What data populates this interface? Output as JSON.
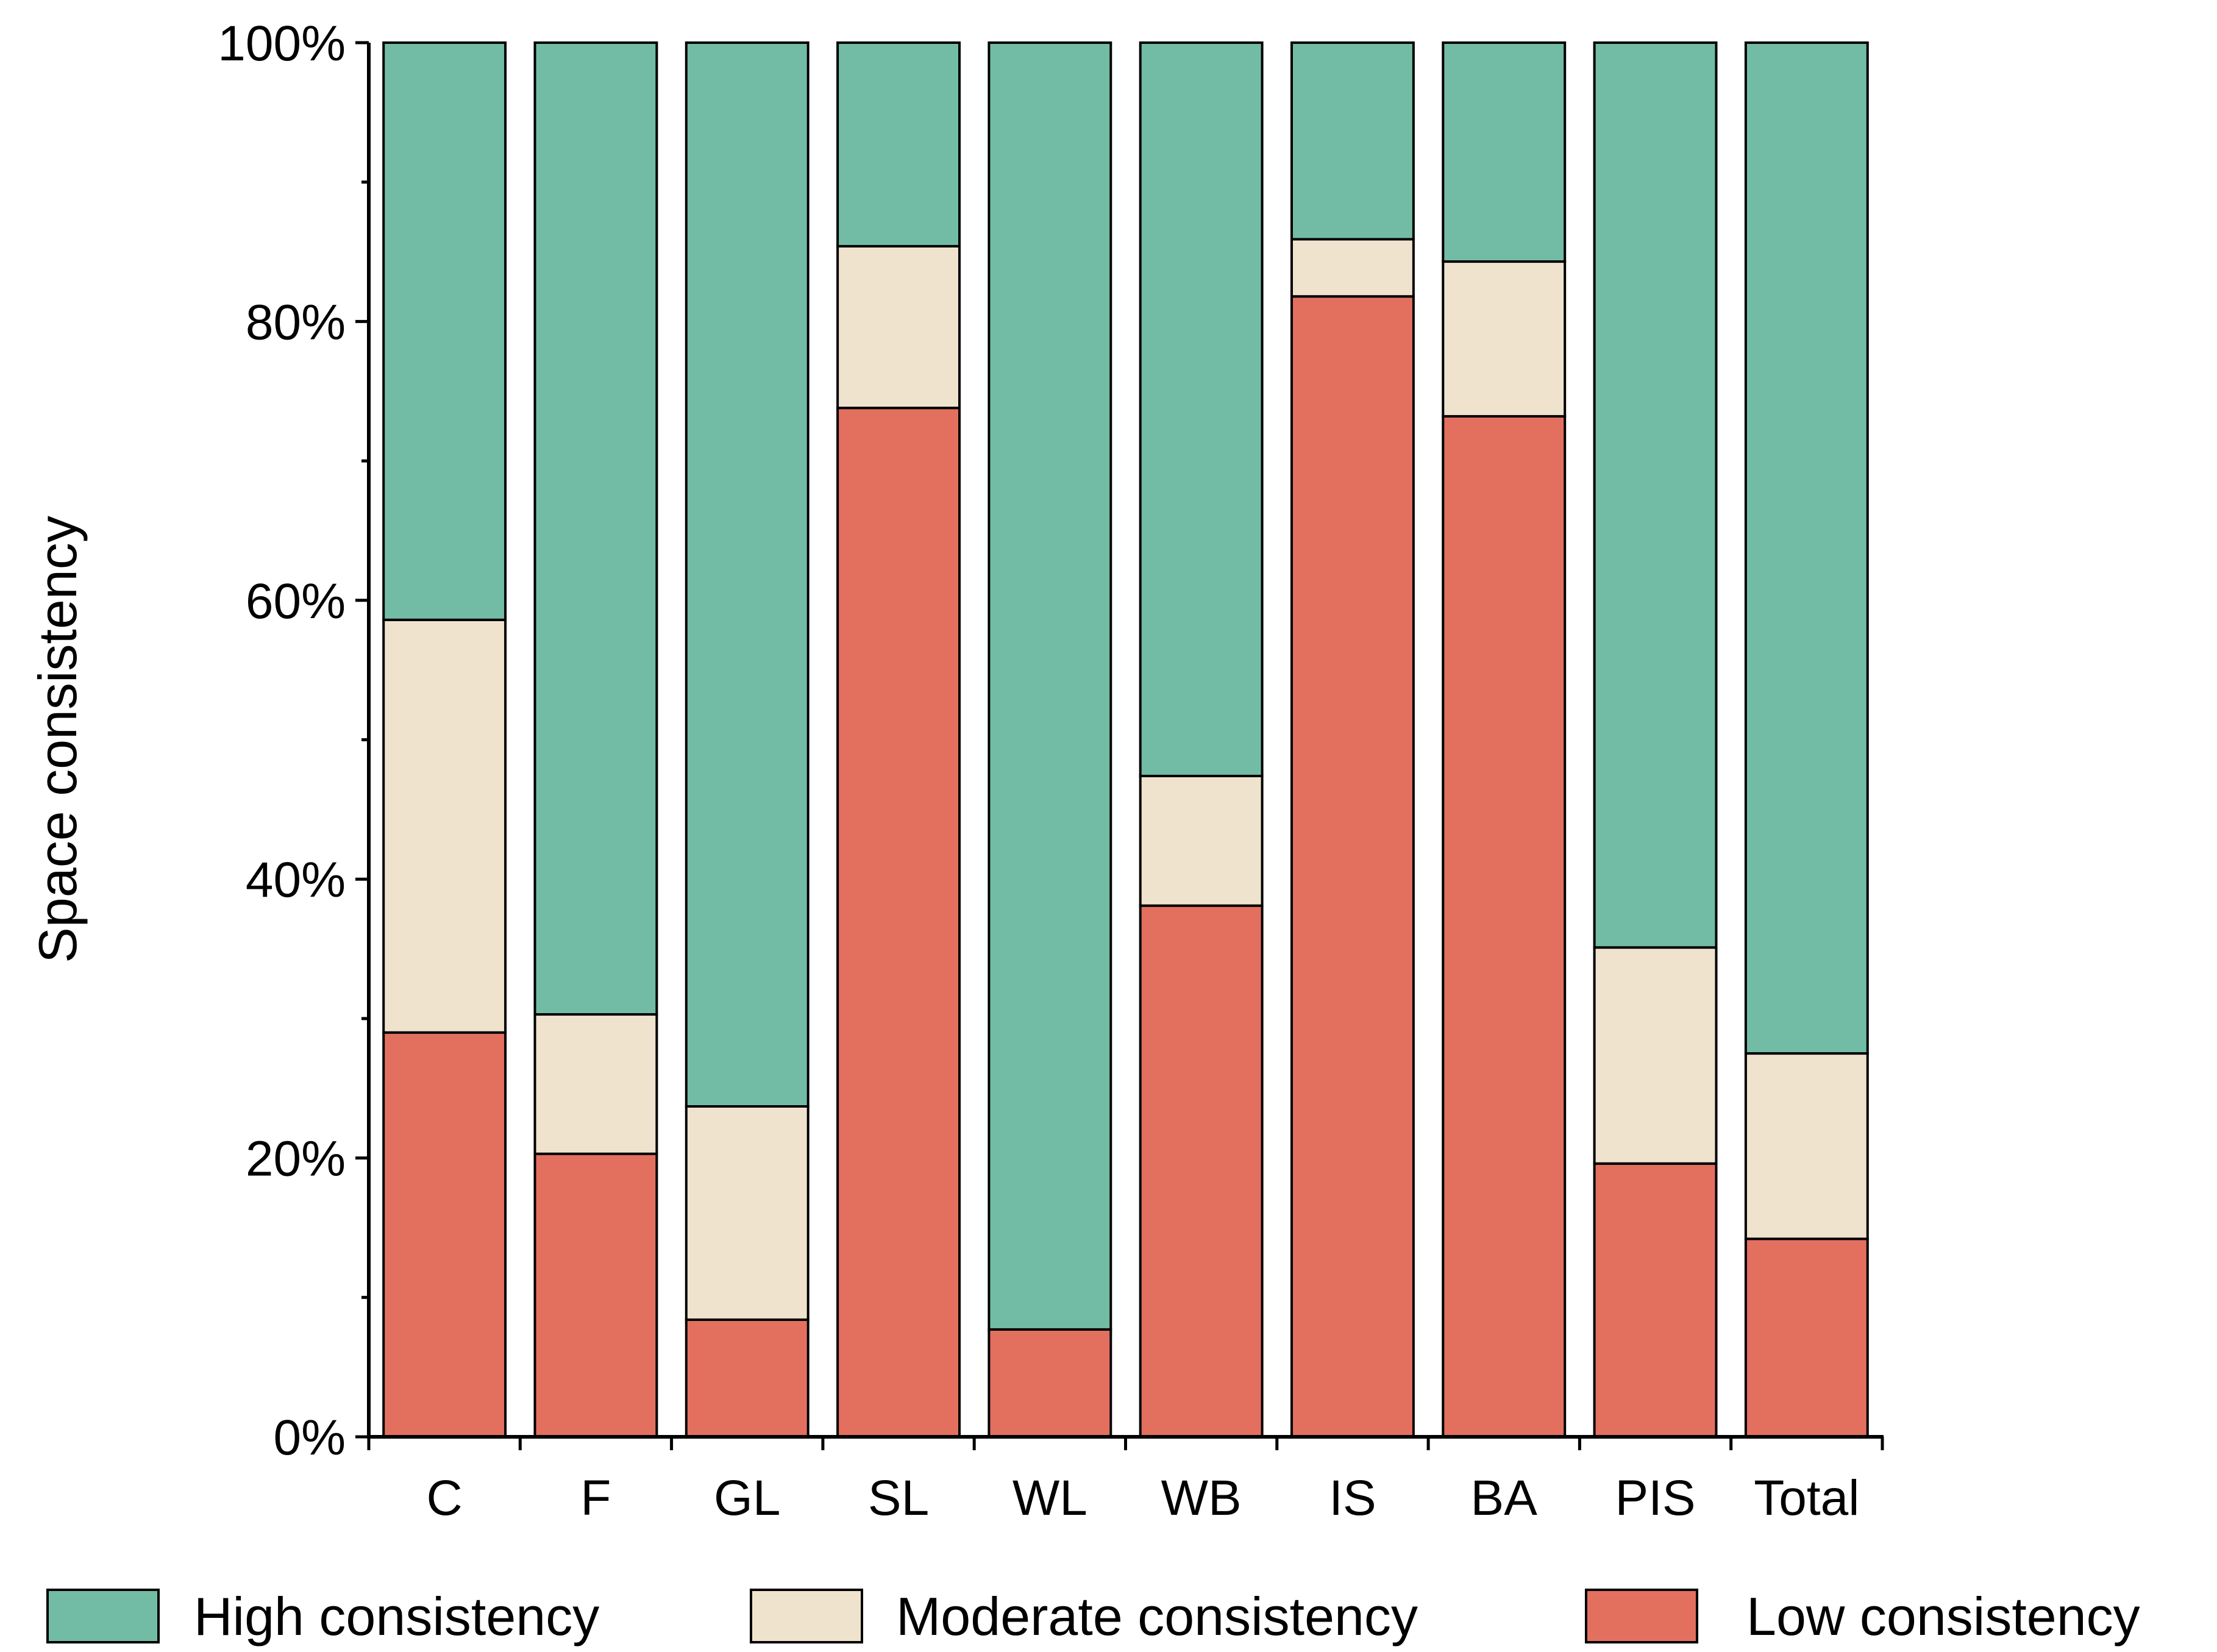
{
  "chart_data": {
    "type": "bar",
    "stacked": true,
    "title": "",
    "xlabel": "",
    "ylabel": "Space consistency",
    "ylim": [
      0,
      100
    ],
    "y_tick_format": "percent",
    "y_ticks": [
      0,
      20,
      40,
      60,
      80,
      100
    ],
    "y_tick_labels": [
      "0%",
      "20%",
      "40%",
      "60%",
      "80%",
      "100%"
    ],
    "grid": false,
    "legend_position": "bottom",
    "categories": [
      "C",
      "F",
      "GL",
      "SL",
      "WL",
      "WB",
      "IS",
      "BA",
      "PIS",
      "Total"
    ],
    "series": [
      {
        "name": "Low consistency",
        "color": "#E3705F",
        "values": [
          29.0,
          20.3,
          8.4,
          73.8,
          7.7,
          38.1,
          81.8,
          73.2,
          19.6,
          14.2
        ]
      },
      {
        "name": "Moderate consistency",
        "color": "#F0E3CE",
        "values": [
          29.6,
          10.0,
          15.3,
          11.6,
          0.0,
          9.3,
          4.1,
          11.1,
          15.5,
          13.3
        ]
      },
      {
        "name": "High consistency",
        "color": "#72BCA5",
        "values": [
          41.4,
          69.7,
          76.3,
          14.6,
          92.3,
          52.6,
          14.1,
          15.7,
          64.9,
          72.5
        ]
      }
    ],
    "legend_order": [
      "High consistency",
      "Moderate consistency",
      "Low consistency"
    ]
  }
}
